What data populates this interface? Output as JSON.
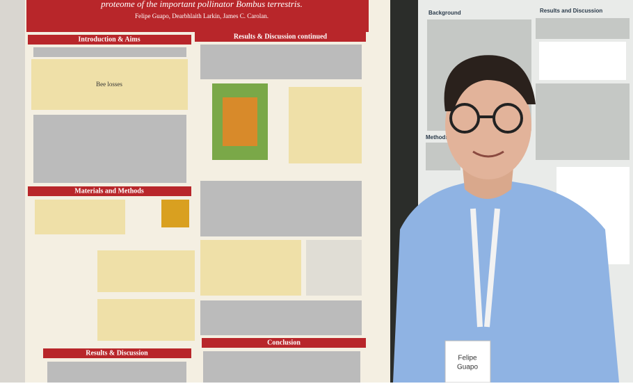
{
  "poster_left": {
    "title": "proteome of the important pollinator Bombus terrestris.",
    "authors": "Felipe Guapo, Dearbhlaith Larkin, James C. Carolan.",
    "sections": [
      "Introduction & Aims",
      "Results & Discussion continued",
      "Materials and Methods",
      "Results & Discussion",
      "Conclusion"
    ],
    "diagram_center": "Bee losses"
  },
  "poster_right": {
    "headings": [
      "Background",
      "Results and Discussion",
      "Methods"
    ]
  },
  "badge": {
    "first_name": "Felipe",
    "last_name": "Guapo"
  }
}
